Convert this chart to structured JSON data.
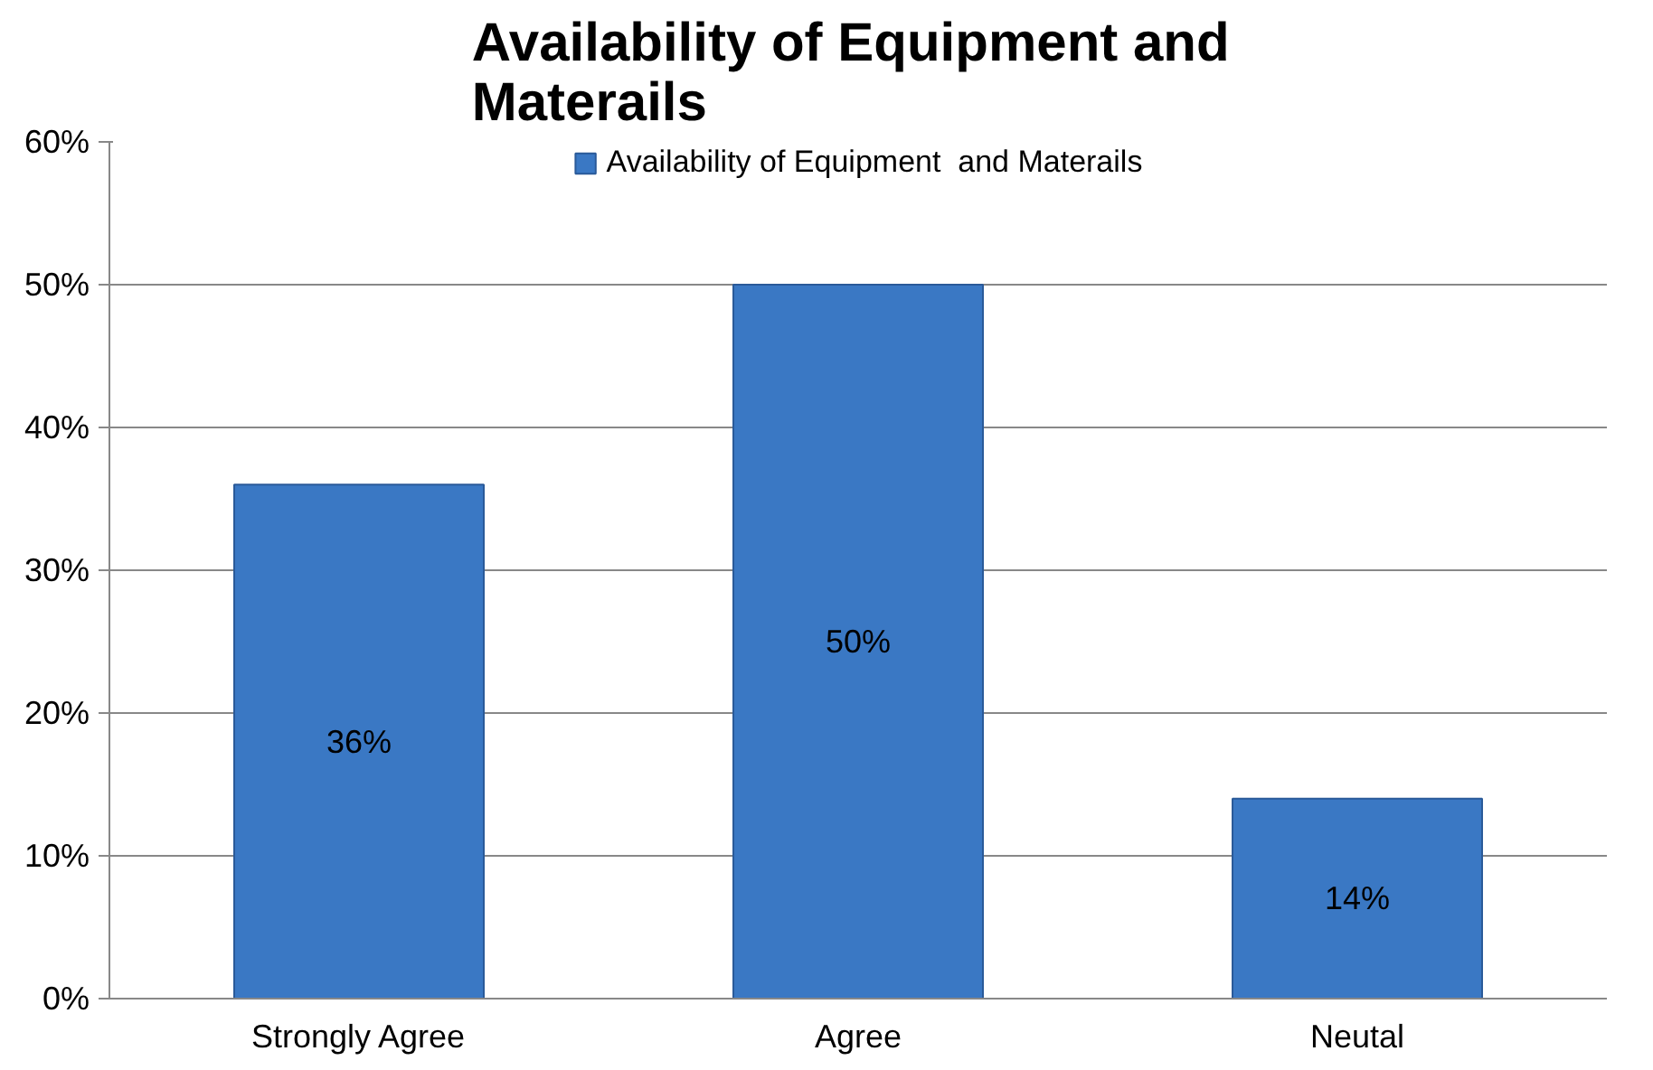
{
  "chart_data": {
    "type": "bar",
    "title": "Availability of Equipment  and Materails",
    "categories": [
      "Strongly Agree",
      "Agree",
      "Neutal"
    ],
    "series": [
      {
        "name": "Availability of Equipment  and Materails",
        "color": "#3a78c4",
        "values": [
          36,
          50,
          14
        ],
        "value_labels": [
          "36%",
          "50%",
          "14%"
        ]
      }
    ],
    "ylim": [
      0,
      60
    ],
    "yticks": [
      {
        "value": 0,
        "label": "0%"
      },
      {
        "value": 10,
        "label": "10%"
      },
      {
        "value": 20,
        "label": "20%"
      },
      {
        "value": 30,
        "label": "30%"
      },
      {
        "value": 40,
        "label": "40%"
      },
      {
        "value": 50,
        "label": "50%"
      },
      {
        "value": 60,
        "label": "60%"
      }
    ],
    "grid": "y",
    "legend": "top"
  }
}
